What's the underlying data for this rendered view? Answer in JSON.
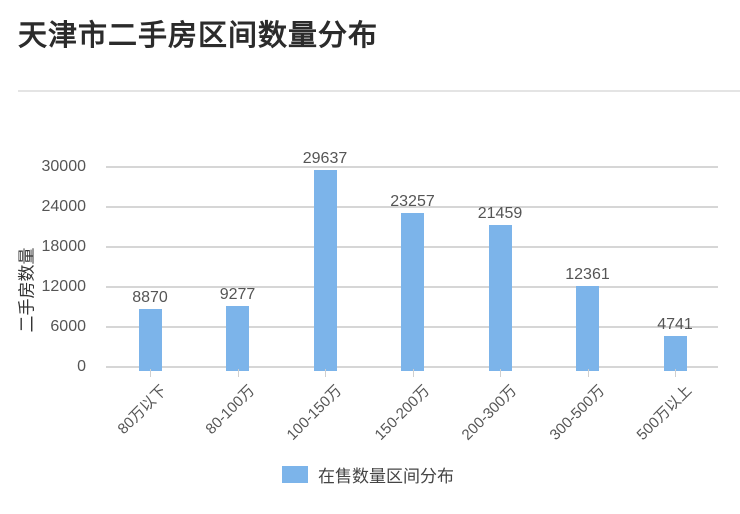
{
  "title": "天津市二手房区间数量分布",
  "chart_data": {
    "type": "bar",
    "title": "天津市二手房区间数量分布",
    "xlabel": "",
    "ylabel": "二手房数量",
    "categories": [
      "80万以下",
      "80-100万",
      "100-150万",
      "150-200万",
      "200-300万",
      "300-500万",
      "500万以上"
    ],
    "series": [
      {
        "name": "在售数量区间分布",
        "values": [
          8870,
          9277,
          29637,
          23257,
          21459,
          12361,
          4741
        ],
        "color": "#7cb4ea"
      }
    ],
    "ylim": [
      0,
      30000
    ],
    "yticks": [
      "0",
      "6000",
      "12000",
      "18000",
      "24000",
      "30000"
    ],
    "grid": true,
    "legend_position": "bottom",
    "data_labels": [
      "8870",
      "9277",
      "29637",
      "23257",
      "21459",
      "12361",
      "4741"
    ]
  },
  "legend": {
    "label": "在售数量区间分布",
    "color": "#7cb4ea"
  }
}
